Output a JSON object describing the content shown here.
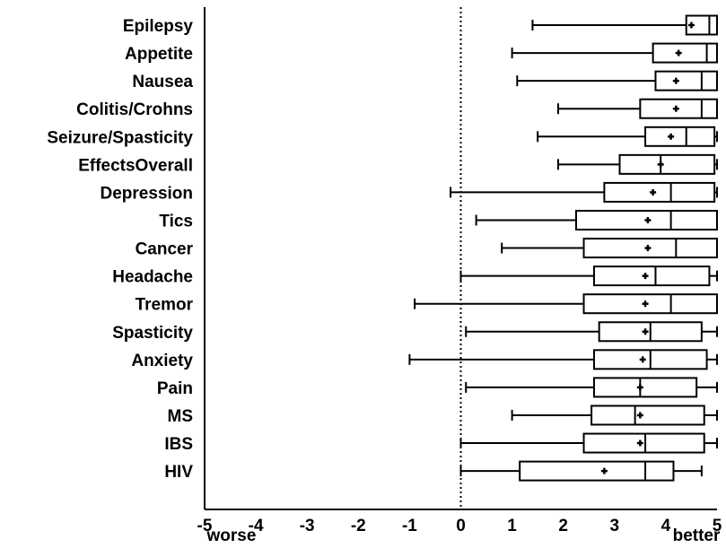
{
  "chart_data": {
    "type": "boxplot",
    "xlim": [
      -5,
      5
    ],
    "xticks": [
      "-5",
      "-4",
      "-3",
      "-2",
      "-1",
      "0",
      "1",
      "2",
      "3",
      "4",
      "5"
    ],
    "xlabel_left": "worse",
    "xlabel_right": "better",
    "reference_line": {
      "x": 0,
      "style": "dotted"
    },
    "grid": false,
    "categories": [
      "Epilepsy",
      "Appetite",
      "Nausea",
      "Colitis/Crohns",
      "Seizure/Spasticity",
      "EffectsOverall",
      "Depression",
      "Tics",
      "Cancer",
      "Headache",
      "Tremor",
      "Spasticity",
      "Anxiety",
      "Pain",
      "MS",
      "IBS",
      "HIV"
    ],
    "boxes": [
      {
        "min": 1.4,
        "q1": 4.4,
        "median": 4.85,
        "q3": 5.0,
        "max": 5.0,
        "mean": 4.5
      },
      {
        "min": 1.0,
        "q1": 3.75,
        "median": 4.8,
        "q3": 5.0,
        "max": 5.0,
        "mean": 4.25
      },
      {
        "min": 1.1,
        "q1": 3.8,
        "median": 4.7,
        "q3": 5.0,
        "max": 5.0,
        "mean": 4.2
      },
      {
        "min": 1.9,
        "q1": 3.5,
        "median": 4.7,
        "q3": 5.0,
        "max": 5.0,
        "mean": 4.2
      },
      {
        "min": 1.5,
        "q1": 3.6,
        "median": 4.4,
        "q3": 4.95,
        "max": 5.0,
        "mean": 4.1
      },
      {
        "min": 1.9,
        "q1": 3.1,
        "median": 3.9,
        "q3": 4.95,
        "max": 5.0,
        "mean": 3.9
      },
      {
        "min": -0.2,
        "q1": 2.8,
        "median": 4.1,
        "q3": 4.95,
        "max": 5.0,
        "mean": 3.75
      },
      {
        "min": 0.3,
        "q1": 2.25,
        "median": 4.1,
        "q3": 5.0,
        "max": 5.0,
        "mean": 3.65
      },
      {
        "min": 0.8,
        "q1": 2.4,
        "median": 4.2,
        "q3": 5.0,
        "max": 5.0,
        "mean": 3.65
      },
      {
        "min": 0.0,
        "q1": 2.6,
        "median": 3.8,
        "q3": 4.85,
        "max": 5.0,
        "mean": 3.6
      },
      {
        "min": -0.9,
        "q1": 2.4,
        "median": 4.1,
        "q3": 5.0,
        "max": 5.0,
        "mean": 3.6
      },
      {
        "min": 0.1,
        "q1": 2.7,
        "median": 3.7,
        "q3": 4.7,
        "max": 5.0,
        "mean": 3.6
      },
      {
        "min": -1.0,
        "q1": 2.6,
        "median": 3.7,
        "q3": 4.8,
        "max": 5.0,
        "mean": 3.55
      },
      {
        "min": 0.1,
        "q1": 2.6,
        "median": 3.5,
        "q3": 4.6,
        "max": 5.0,
        "mean": 3.5
      },
      {
        "min": 1.0,
        "q1": 2.55,
        "median": 3.4,
        "q3": 4.75,
        "max": 5.0,
        "mean": 3.5
      },
      {
        "min": 0.0,
        "q1": 2.4,
        "median": 3.6,
        "q3": 4.75,
        "max": 5.0,
        "mean": 3.5
      },
      {
        "min": 0.0,
        "q1": 1.15,
        "median": 3.6,
        "q3": 4.15,
        "max": 4.7,
        "mean": 2.8
      }
    ]
  }
}
